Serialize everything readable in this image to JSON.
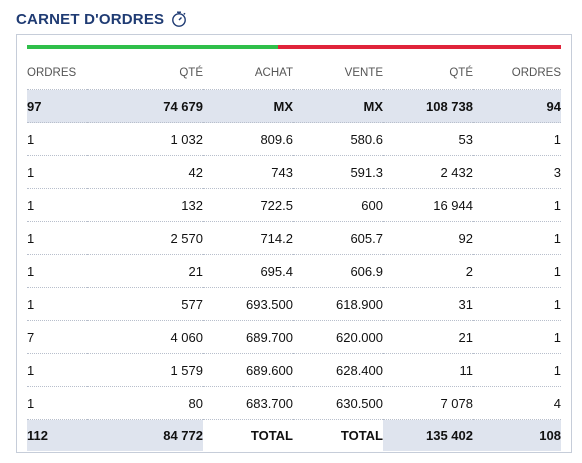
{
  "title": "CARNET D'ORDRES",
  "columns": [
    "ORDRES",
    "QTÉ",
    "ACHAT",
    "VENTE",
    "QTÉ",
    "ORDRES"
  ],
  "summary": {
    "buy_orders": "97",
    "buy_qty": "74 679",
    "buy_price": "MX",
    "sell_price": "MX",
    "sell_qty": "108 738",
    "sell_orders": "94"
  },
  "rows": [
    {
      "buy_orders": "1",
      "buy_qty": "1 032",
      "buy_price": "809.6",
      "sell_price": "580.6",
      "sell_qty": "53",
      "sell_orders": "1"
    },
    {
      "buy_orders": "1",
      "buy_qty": "42",
      "buy_price": "743",
      "sell_price": "591.3",
      "sell_qty": "2 432",
      "sell_orders": "3"
    },
    {
      "buy_orders": "1",
      "buy_qty": "132",
      "buy_price": "722.5",
      "sell_price": "600",
      "sell_qty": "16 944",
      "sell_orders": "1"
    },
    {
      "buy_orders": "1",
      "buy_qty": "2 570",
      "buy_price": "714.2",
      "sell_price": "605.7",
      "sell_qty": "92",
      "sell_orders": "1"
    },
    {
      "buy_orders": "1",
      "buy_qty": "21",
      "buy_price": "695.4",
      "sell_price": "606.9",
      "sell_qty": "2",
      "sell_orders": "1"
    },
    {
      "buy_orders": "1",
      "buy_qty": "577",
      "buy_price": "693.500",
      "sell_price": "618.900",
      "sell_qty": "31",
      "sell_orders": "1"
    },
    {
      "buy_orders": "7",
      "buy_qty": "4 060",
      "buy_price": "689.700",
      "sell_price": "620.000",
      "sell_qty": "21",
      "sell_orders": "1"
    },
    {
      "buy_orders": "1",
      "buy_qty": "1 579",
      "buy_price": "689.600",
      "sell_price": "628.400",
      "sell_qty": "11",
      "sell_orders": "1"
    },
    {
      "buy_orders": "1",
      "buy_qty": "80",
      "buy_price": "683.700",
      "sell_price": "630.500",
      "sell_qty": "7 078",
      "sell_orders": "4"
    }
  ],
  "footer": {
    "buy_orders": "112",
    "buy_qty": "84 772",
    "buy_label": "TOTAL",
    "sell_label": "TOTAL",
    "sell_qty": "135 402",
    "sell_orders": "108"
  },
  "depth_bar": {
    "buy_fraction": 0.47,
    "buy_color": "#2fbf4a",
    "sell_color": "#e0243a"
  },
  "icons": {
    "title_icon": "stopwatch-icon"
  }
}
